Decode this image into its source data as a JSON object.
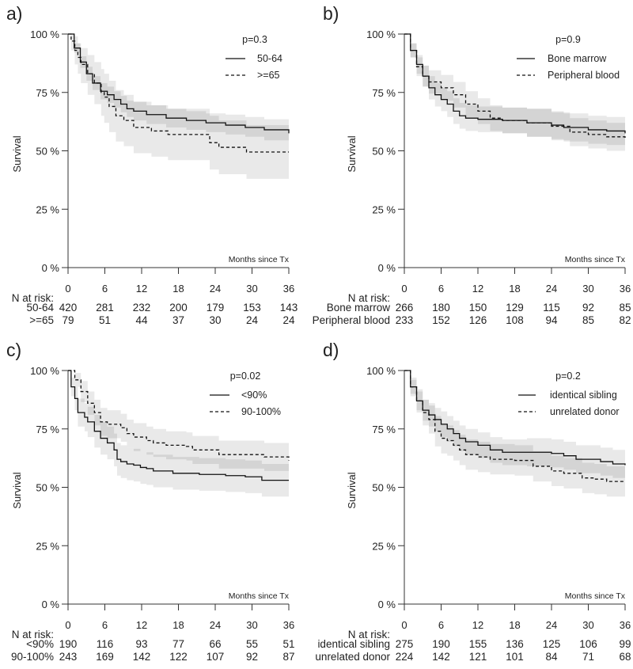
{
  "chart_data": [
    {
      "type": "line",
      "panel_label": "a)",
      "p_value": "p=0.3",
      "xlabel": "Months since Tx",
      "ylabel": "Survival",
      "xlim": [
        0,
        36
      ],
      "ylim": [
        0,
        100
      ],
      "xticks": [
        "0",
        "6",
        "12",
        "18",
        "24",
        "30",
        "36"
      ],
      "yticks": [
        "0 %",
        "25 %",
        "50 %",
        "75 %",
        "100 %"
      ],
      "series": [
        {
          "name": "50-64",
          "style": "solid",
          "time": [
            0,
            1,
            2,
            3,
            4,
            5.3,
            6.4,
            7.5,
            8.6,
            9.6,
            10.7,
            12.8,
            16,
            19.3,
            22.5,
            25.7,
            28.9,
            32,
            36
          ],
          "survival": [
            100,
            94,
            88,
            83,
            79,
            75.5,
            74,
            72,
            70,
            68,
            67,
            65.5,
            64,
            63,
            62,
            61,
            60,
            59,
            57.5
          ],
          "ci_lower": [
            100,
            92,
            85.5,
            80,
            76,
            72,
            70.5,
            68.5,
            66.5,
            64.5,
            63,
            61.5,
            60,
            59,
            58,
            57,
            56,
            54.5,
            53
          ],
          "ci_upper": [
            100,
            96,
            90.5,
            86,
            82,
            79,
            77.5,
            75.5,
            73.5,
            71.5,
            71,
            69.5,
            68,
            67,
            66,
            65.5,
            64.5,
            63.5,
            62
          ]
        },
        {
          "name": ">=65",
          "style": "dashed",
          "time": [
            0,
            0.5,
            1.1,
            1.6,
            2.1,
            3.2,
            4.3,
            5.4,
            5.9,
            6.7,
            7.8,
            9.1,
            10.7,
            13.6,
            16.3,
            23.1,
            24.6,
            29.1,
            36
          ],
          "survival": [
            100,
            97,
            93,
            90,
            87,
            83,
            79,
            75,
            73,
            69,
            65,
            63,
            60,
            58.5,
            57,
            53.5,
            51.5,
            49.5,
            49.5
          ],
          "ci_lower": [
            100,
            93,
            87,
            83,
            79,
            74,
            70,
            65,
            62,
            58,
            54,
            52,
            49,
            47.5,
            46,
            42,
            40,
            38,
            38
          ],
          "ci_upper": [
            100,
            100,
            99,
            96,
            94,
            91,
            88,
            85,
            83,
            80,
            76,
            74,
            71,
            69.5,
            68,
            65,
            63,
            61,
            61
          ]
        }
      ],
      "risk_table": {
        "title": "N at risk:",
        "rows": [
          {
            "name": "50-64",
            "values": [
              "420",
              "281",
              "232",
              "200",
              "179",
              "153",
              "143"
            ]
          },
          {
            "name": ">=65",
            "values": [
              "79",
              "51",
              "44",
              "37",
              "30",
              "24",
              "24"
            ]
          }
        ]
      }
    },
    {
      "type": "line",
      "panel_label": "b)",
      "p_value": "p=0.9",
      "xlabel": "Months since Tx",
      "ylabel": "Survival",
      "xlim": [
        0,
        36
      ],
      "ylim": [
        0,
        100
      ],
      "xticks": [
        "0",
        "6",
        "12",
        "18",
        "24",
        "30",
        "36"
      ],
      "yticks": [
        "0 %",
        "25 %",
        "50 %",
        "75 %",
        "100 %"
      ],
      "series": [
        {
          "name": "Bone marrow",
          "style": "solid",
          "time": [
            0,
            1,
            2,
            3,
            4,
            5,
            6,
            7,
            8,
            9,
            10,
            12,
            16,
            20,
            24,
            26,
            30,
            33,
            36
          ],
          "survival": [
            100,
            93,
            87,
            82,
            77,
            74,
            72,
            70,
            67,
            65,
            64,
            63.5,
            63,
            62,
            61,
            60,
            59,
            58.5,
            57.5
          ],
          "ci_lower": [
            100,
            90,
            83,
            77.5,
            72,
            69,
            67,
            64.5,
            61.5,
            59.5,
            58.5,
            58,
            57.5,
            56,
            55,
            54,
            53,
            52.5,
            51.5
          ],
          "ci_upper": [
            100,
            96,
            91,
            86.5,
            82,
            79,
            77,
            75.5,
            72.5,
            70.5,
            69.5,
            69,
            68.5,
            68,
            67,
            66,
            65,
            64.5,
            63.5
          ]
        },
        {
          "name": "Peripheral blood",
          "style": "dashed",
          "time": [
            0,
            1,
            2,
            3,
            4,
            6,
            8,
            10,
            12,
            14,
            16,
            20,
            24,
            27,
            30,
            33,
            36
          ],
          "survival": [
            100,
            93,
            86,
            82,
            79.5,
            77,
            74,
            70,
            67,
            64,
            63,
            62,
            60.5,
            58,
            57,
            56,
            55
          ],
          "ci_lower": [
            100,
            90,
            82,
            77.5,
            74.5,
            71.5,
            68.5,
            64.5,
            61.5,
            58.5,
            57.5,
            56,
            54.5,
            52,
            51,
            50,
            49
          ],
          "ci_upper": [
            100,
            96,
            90,
            86.5,
            84.5,
            82.5,
            79.5,
            75.5,
            72.5,
            69.5,
            68.5,
            68,
            66.5,
            64,
            63,
            62,
            61
          ]
        }
      ],
      "risk_table": {
        "title": "N at risk:",
        "rows": [
          {
            "name": "Bone marrow",
            "values": [
              "266",
              "180",
              "150",
              "129",
              "115",
              "92",
              "85"
            ]
          },
          {
            "name": "Peripheral blood",
            "values": [
              "233",
              "152",
              "126",
              "108",
              "94",
              "85",
              "82"
            ]
          }
        ]
      }
    },
    {
      "type": "line",
      "panel_label": "c)",
      "p_value": "p=0.02",
      "xlabel": "Months since Tx",
      "ylabel": "Survival",
      "xlim": [
        0,
        36
      ],
      "ylim": [
        0,
        100
      ],
      "xticks": [
        "0",
        "6",
        "12",
        "18",
        "24",
        "30",
        "36"
      ],
      "yticks": [
        "0 %",
        "25 %",
        "50 %",
        "75 %",
        "100 %"
      ],
      "series": [
        {
          "name": "<90%",
          "style": "solid",
          "time": [
            0,
            0.5,
            1.1,
            1.6,
            2.7,
            3.2,
            4.3,
            5.3,
            6.4,
            7.5,
            8,
            8.6,
            9.6,
            10.7,
            11.8,
            12.8,
            13.9,
            17.1,
            21.4,
            25.7,
            28.9,
            31.6,
            36
          ],
          "survival": [
            100,
            93,
            88,
            82,
            80,
            78,
            74,
            71,
            69,
            66,
            62,
            61,
            60,
            59.5,
            58.5,
            58,
            57,
            56,
            55.5,
            55,
            54.5,
            53,
            53
          ],
          "ci_lower": [
            100,
            89,
            83,
            76,
            74,
            71.5,
            67,
            64,
            62,
            59,
            55,
            54,
            53,
            52.5,
            51.5,
            51,
            50,
            49,
            48.5,
            48,
            47.5,
            46,
            46
          ],
          "ci_upper": [
            100,
            97,
            93,
            88,
            86,
            84.5,
            81,
            78,
            76,
            73,
            69,
            68,
            67,
            66.5,
            65.5,
            65,
            64,
            63,
            62.5,
            62,
            61.5,
            60,
            60
          ]
        },
        {
          "name": "90-100%",
          "style": "dashed",
          "time": [
            0,
            1.1,
            2.1,
            3.2,
            4.3,
            5.3,
            6.4,
            8.6,
            9.6,
            10.7,
            12.8,
            13.9,
            16,
            19.3,
            20.3,
            23.5,
            24.6,
            27.8,
            32,
            36
          ],
          "survival": [
            100,
            96,
            91,
            86,
            82,
            78,
            77,
            75.5,
            73,
            71.5,
            70,
            69,
            68,
            67.5,
            66,
            66,
            64,
            64,
            63,
            61.5
          ],
          "ci_lower": [
            100,
            93,
            86.5,
            81,
            76.5,
            72,
            71,
            69.5,
            67,
            65.5,
            64,
            63,
            62,
            61.5,
            60,
            60,
            58,
            58,
            57,
            55.5
          ],
          "ci_upper": [
            100,
            99,
            95.5,
            91,
            87.5,
            84,
            83,
            81.5,
            79,
            77.5,
            76,
            75,
            74,
            73.5,
            72,
            72,
            70,
            70,
            69,
            67.5
          ]
        }
      ],
      "risk_table": {
        "title": "N at risk:",
        "rows": [
          {
            "name": "<90%",
            "values": [
              "190",
              "116",
              "93",
              "77",
              "66",
              "55",
              "51"
            ]
          },
          {
            "name": "90-100%",
            "values": [
              "243",
              "169",
              "142",
              "122",
              "107",
              "92",
              "87"
            ]
          }
        ]
      }
    },
    {
      "type": "line",
      "panel_label": "d)",
      "p_value": "p=0.2",
      "xlabel": "Months since Tx",
      "ylabel": "Survival",
      "xlim": [
        0,
        36
      ],
      "ylim": [
        0,
        100
      ],
      "xticks": [
        "0",
        "6",
        "12",
        "18",
        "24",
        "30",
        "36"
      ],
      "yticks": [
        "0 %",
        "25 %",
        "50 %",
        "75 %",
        "100 %"
      ],
      "series": [
        {
          "name": "identical sibling",
          "style": "solid",
          "time": [
            0,
            1,
            2,
            3,
            4,
            5,
            6,
            7,
            8,
            9,
            10,
            12,
            14,
            16,
            20,
            24,
            26,
            28,
            32,
            34,
            36
          ],
          "survival": [
            100,
            93,
            87,
            83,
            81,
            79,
            77,
            75,
            73,
            71,
            69.5,
            68,
            66,
            65,
            65,
            64.5,
            63.5,
            62,
            61,
            60,
            59.5
          ],
          "ci_lower": [
            100,
            90,
            83,
            78.5,
            76,
            74,
            71.5,
            69.5,
            67.5,
            65.5,
            64,
            62.5,
            60.5,
            59.5,
            59,
            58.5,
            57.5,
            56,
            55,
            54,
            53.5
          ],
          "ci_upper": [
            100,
            96,
            91,
            87.5,
            86,
            84,
            82.5,
            80.5,
            78.5,
            76.5,
            75,
            73.5,
            71.5,
            70.5,
            71,
            70.5,
            69.5,
            68,
            67,
            66,
            65.5
          ]
        },
        {
          "name": "unrelated donor",
          "style": "dashed",
          "time": [
            0,
            1,
            2,
            3,
            4,
            5,
            6,
            7,
            8,
            9,
            10,
            12,
            14,
            18,
            21,
            24,
            26,
            29,
            31,
            33,
            36
          ],
          "survival": [
            100,
            93,
            87,
            82,
            79,
            74,
            71,
            70,
            68,
            66,
            64,
            63,
            62,
            61.5,
            59,
            57,
            56,
            54,
            53.5,
            52.5,
            52.5
          ],
          "ci_lower": [
            100,
            89,
            82,
            76.5,
            73,
            67.5,
            64.5,
            63.5,
            61.5,
            59.5,
            57.5,
            56.5,
            55.5,
            55,
            52.5,
            50.5,
            49.5,
            47.5,
            47,
            46,
            46
          ],
          "ci_upper": [
            100,
            97,
            92,
            87.5,
            85,
            80.5,
            77.5,
            76.5,
            74.5,
            72.5,
            70.5,
            69.5,
            68.5,
            68,
            65.5,
            63.5,
            62.5,
            60.5,
            60,
            59,
            59
          ]
        }
      ],
      "risk_table": {
        "title": "N at risk:",
        "rows": [
          {
            "name": "identical sibling",
            "values": [
              "275",
              "190",
              "155",
              "136",
              "125",
              "106",
              "99"
            ]
          },
          {
            "name": "unrelated donor",
            "values": [
              "224",
              "142",
              "121",
              "101",
              "84",
              "71",
              "68"
            ]
          }
        ]
      }
    }
  ]
}
